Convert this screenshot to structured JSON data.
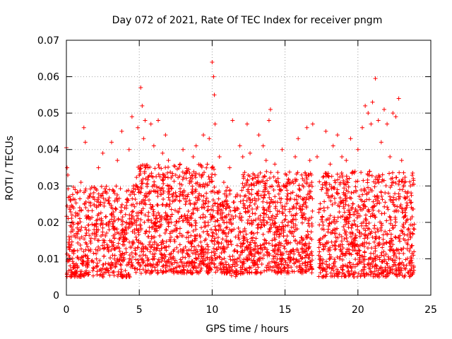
{
  "chart_data": {
    "type": "scatter",
    "title": "Day 072 of 2021, Rate Of TEC Index for receiver pngm",
    "xlabel": "GPS time / hours",
    "ylabel": "ROTI / TECUs",
    "xlim": [
      0,
      25
    ],
    "ylim": [
      0,
      0.07
    ],
    "xticks": [
      0,
      5,
      10,
      15,
      20,
      25
    ],
    "xtick_labels": [
      "0",
      "5",
      "10",
      "15",
      "20",
      "25"
    ],
    "yticks": [
      0,
      0.01,
      0.02,
      0.03,
      0.04,
      0.05,
      0.06,
      0.07
    ],
    "ytick_labels": [
      "0",
      "0.01",
      "0.02",
      "0.03",
      "0.04",
      "0.05",
      "0.06",
      "0.07"
    ],
    "grid": true,
    "marker": "+",
    "color": "#ff0000",
    "series": [
      {
        "name": "ROTI",
        "points": [
          [
            0.0,
            0.0405
          ],
          [
            0.05,
            0.035
          ],
          [
            0.1,
            0.033
          ],
          [
            0.2,
            0.014
          ],
          [
            0.3,
            0.026
          ],
          [
            0.5,
            0.012
          ],
          [
            0.6,
            0.029
          ],
          [
            0.8,
            0.022
          ],
          [
            1.0,
            0.031
          ],
          [
            1.2,
            0.046
          ],
          [
            1.3,
            0.042
          ],
          [
            1.5,
            0.01
          ],
          [
            1.6,
            0.027
          ],
          [
            1.9,
            0.018
          ],
          [
            2.2,
            0.035
          ],
          [
            2.4,
            0.021
          ],
          [
            2.5,
            0.039
          ],
          [
            2.8,
            0.013
          ],
          [
            3.1,
            0.042
          ],
          [
            3.3,
            0.028
          ],
          [
            3.5,
            0.037
          ],
          [
            3.6,
            0.017
          ],
          [
            3.8,
            0.045
          ],
          [
            4.0,
            0.024
          ],
          [
            4.3,
            0.04
          ],
          [
            4.5,
            0.049
          ],
          [
            4.6,
            0.03
          ],
          [
            4.9,
            0.046
          ],
          [
            5.1,
            0.057
          ],
          [
            5.2,
            0.052
          ],
          [
            5.3,
            0.043
          ],
          [
            5.4,
            0.048
          ],
          [
            5.6,
            0.035
          ],
          [
            5.8,
            0.047
          ],
          [
            6.0,
            0.041
          ],
          [
            6.3,
            0.048
          ],
          [
            6.6,
            0.039
          ],
          [
            6.8,
            0.044
          ],
          [
            7.0,
            0.037
          ],
          [
            7.3,
            0.027
          ],
          [
            7.5,
            0.033
          ],
          [
            7.8,
            0.036
          ],
          [
            8.0,
            0.04
          ],
          [
            8.3,
            0.034
          ],
          [
            8.5,
            0.025
          ],
          [
            8.7,
            0.038
          ],
          [
            8.9,
            0.041
          ],
          [
            9.1,
            0.03
          ],
          [
            9.4,
            0.044
          ],
          [
            9.6,
            0.028
          ],
          [
            9.8,
            0.043
          ],
          [
            10.0,
            0.064
          ],
          [
            10.1,
            0.06
          ],
          [
            10.15,
            0.055
          ],
          [
            10.2,
            0.047
          ],
          [
            10.5,
            0.038
          ],
          [
            10.8,
            0.031
          ],
          [
            11.0,
            0.02
          ],
          [
            11.2,
            0.035
          ],
          [
            11.4,
            0.048
          ],
          [
            11.6,
            0.027
          ],
          [
            11.9,
            0.041
          ],
          [
            12.1,
            0.038
          ],
          [
            12.4,
            0.047
          ],
          [
            12.6,
            0.039
          ],
          [
            12.9,
            0.033
          ],
          [
            13.2,
            0.044
          ],
          [
            13.5,
            0.041
          ],
          [
            13.7,
            0.037
          ],
          [
            13.9,
            0.048
          ],
          [
            14.0,
            0.051
          ],
          [
            14.3,
            0.036
          ],
          [
            14.5,
            0.03
          ],
          [
            14.8,
            0.04
          ],
          [
            15.1,
            0.033
          ],
          [
            15.4,
            0.028
          ],
          [
            15.7,
            0.038
          ],
          [
            15.9,
            0.043
          ],
          [
            16.2,
            0.032
          ],
          [
            16.5,
            0.046
          ],
          [
            16.7,
            0.037
          ],
          [
            16.9,
            0.047
          ],
          [
            17.2,
            0.038
          ],
          [
            17.5,
            0.029
          ],
          [
            17.8,
            0.045
          ],
          [
            18.1,
            0.036
          ],
          [
            18.3,
            0.041
          ],
          [
            18.6,
            0.044
          ],
          [
            18.9,
            0.038
          ],
          [
            19.2,
            0.037
          ],
          [
            19.5,
            0.043
          ],
          [
            19.8,
            0.034
          ],
          [
            20.0,
            0.04
          ],
          [
            20.3,
            0.046
          ],
          [
            20.5,
            0.052
          ],
          [
            20.7,
            0.05
          ],
          [
            20.9,
            0.047
          ],
          [
            21.0,
            0.053
          ],
          [
            21.2,
            0.0595
          ],
          [
            21.4,
            0.048
          ],
          [
            21.6,
            0.042
          ],
          [
            21.8,
            0.051
          ],
          [
            22.0,
            0.047
          ],
          [
            22.2,
            0.038
          ],
          [
            22.4,
            0.05
          ],
          [
            22.6,
            0.049
          ],
          [
            22.8,
            0.054
          ],
          [
            23.0,
            0.037
          ],
          [
            23.2,
            0.031
          ],
          [
            23.4,
            0.027
          ],
          [
            23.6,
            0.03
          ],
          [
            23.8,
            0.032
          ]
        ],
        "bands": [
          {
            "x": [
              0.0,
              4.6
            ],
            "y": [
              0.005,
              0.03
            ],
            "n": 560
          },
          {
            "x": [
              4.6,
              10.3
            ],
            "y": [
              0.006,
              0.036
            ],
            "n": 820
          },
          {
            "x": [
              10.3,
              11.3
            ],
            "y": [
              0.006,
              0.03
            ],
            "n": 140
          },
          {
            "x": [
              11.3,
              12.0
            ],
            "y": [
              0.005,
              0.028
            ],
            "n": 70
          },
          {
            "x": [
              12.0,
              16.9
            ],
            "y": [
              0.006,
              0.034
            ],
            "n": 720
          },
          {
            "x": [
              17.3,
              23.9
            ],
            "y": [
              0.005,
              0.034
            ],
            "n": 900
          }
        ]
      }
    ]
  }
}
